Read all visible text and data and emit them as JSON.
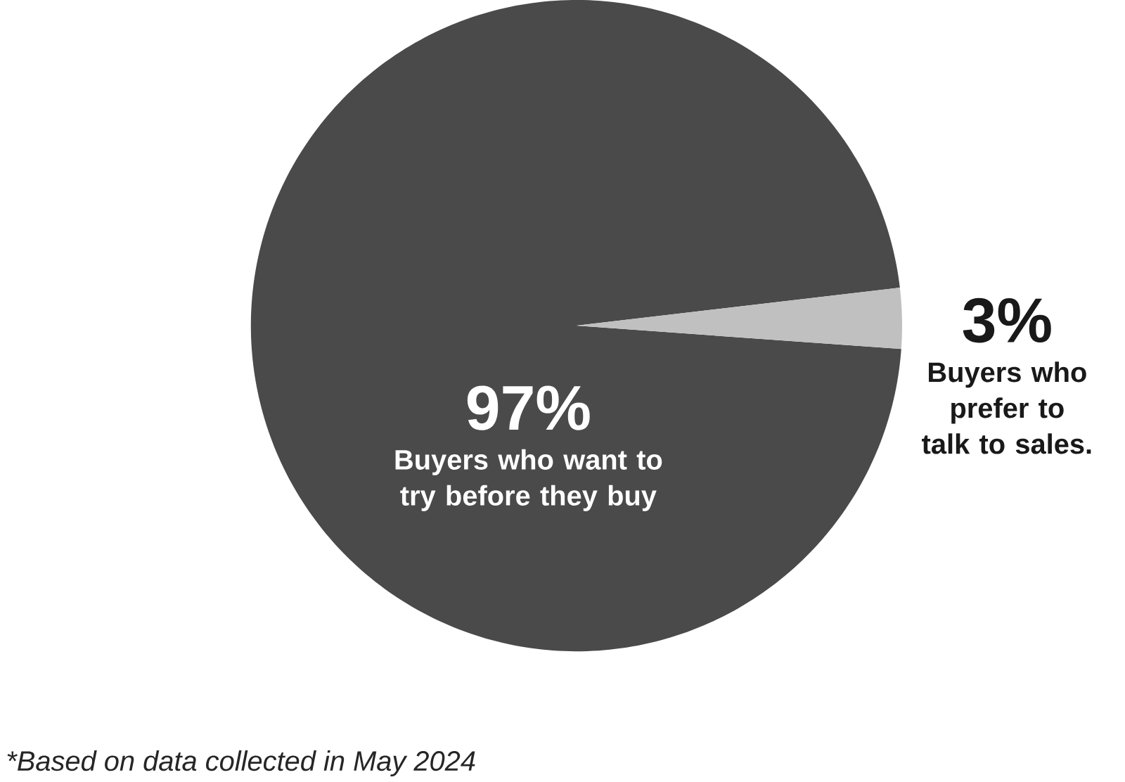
{
  "chart_data": {
    "type": "pie",
    "categories": [
      "Buyers who want to try before they buy",
      "Buyers who prefer to talk to sales."
    ],
    "values": [
      97,
      3
    ],
    "colors": [
      "#4a4a4a",
      "#c0c0c0"
    ],
    "value_labels": [
      "97%",
      "3%"
    ],
    "annotations": [
      "*Based on data collected in May 2024"
    ]
  }
}
